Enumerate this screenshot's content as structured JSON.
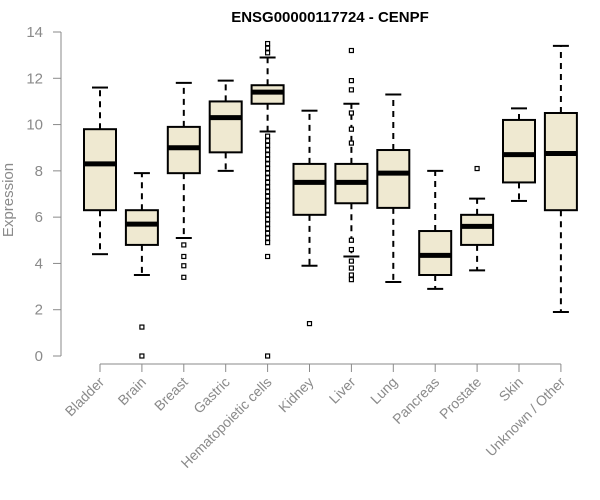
{
  "chart_data": {
    "type": "boxplot",
    "title": "ENSG00000117724 - CENPF",
    "xlabel": "",
    "ylabel": "Expression",
    "ylim": [
      0,
      14
    ],
    "yticks": [
      0,
      2,
      4,
      6,
      8,
      10,
      12,
      14
    ],
    "categories": [
      "Bladder",
      "Brain",
      "Breast",
      "Gastric",
      "Hematopoietic cells",
      "Kidney",
      "Liver",
      "Lung",
      "Pancreas",
      "Prostate",
      "Skin",
      "Unknown / Other"
    ],
    "boxes": [
      {
        "name": "Bladder",
        "whisker_low": 4.4,
        "q1": 6.3,
        "median": 8.3,
        "q3": 9.8,
        "whisker_high": 11.6,
        "outliers": []
      },
      {
        "name": "Brain",
        "whisker_low": 3.5,
        "q1": 4.8,
        "median": 5.7,
        "q3": 6.3,
        "whisker_high": 7.9,
        "outliers": [
          1.25,
          0.0
        ]
      },
      {
        "name": "Breast",
        "whisker_low": 5.1,
        "q1": 7.9,
        "median": 9.0,
        "q3": 9.9,
        "whisker_high": 11.8,
        "outliers": [
          4.8,
          4.3,
          3.9,
          3.4
        ]
      },
      {
        "name": "Gastric",
        "whisker_low": 8.0,
        "q1": 8.8,
        "median": 10.3,
        "q3": 11.0,
        "whisker_high": 11.9,
        "outliers": []
      },
      {
        "name": "Hematopoietic cells",
        "whisker_low": 9.7,
        "q1": 10.9,
        "median": 11.4,
        "q3": 11.7,
        "whisker_high": 12.9,
        "outliers": [
          13.5,
          13.3,
          13.1,
          9.5,
          9.3,
          9.1,
          8.9,
          8.7,
          8.5,
          8.3,
          8.1,
          7.9,
          7.7,
          7.5,
          7.3,
          7.1,
          6.9,
          6.7,
          6.5,
          6.3,
          6.1,
          5.9,
          5.7,
          5.5,
          5.3,
          5.1,
          4.9,
          4.3,
          0.0
        ]
      },
      {
        "name": "Kidney",
        "whisker_low": 3.9,
        "q1": 6.1,
        "median": 7.5,
        "q3": 8.3,
        "whisker_high": 10.6,
        "outliers": [
          1.4
        ]
      },
      {
        "name": "Liver",
        "whisker_low": 4.3,
        "q1": 6.6,
        "median": 7.5,
        "q3": 8.3,
        "whisker_high": 10.9,
        "outliers": [
          13.2,
          11.9,
          11.5,
          10.5,
          9.8,
          9.2,
          5.0,
          4.6,
          4.1,
          3.8,
          3.5,
          3.3
        ]
      },
      {
        "name": "Lung",
        "whisker_low": 3.2,
        "q1": 6.4,
        "median": 7.9,
        "q3": 8.9,
        "whisker_high": 11.3,
        "outliers": []
      },
      {
        "name": "Pancreas",
        "whisker_low": 2.9,
        "q1": 3.5,
        "median": 4.35,
        "q3": 5.4,
        "whisker_high": 8.0,
        "outliers": []
      },
      {
        "name": "Prostate",
        "whisker_low": 3.7,
        "q1": 4.8,
        "median": 5.6,
        "q3": 6.1,
        "whisker_high": 6.8,
        "outliers": [
          8.1
        ]
      },
      {
        "name": "Skin",
        "whisker_low": 6.7,
        "q1": 7.5,
        "median": 8.7,
        "q3": 10.2,
        "whisker_high": 10.7,
        "outliers": []
      },
      {
        "name": "Unknown / Other",
        "whisker_low": 1.9,
        "q1": 6.3,
        "median": 8.75,
        "q3": 10.5,
        "whisker_high": 13.4,
        "outliers": []
      }
    ],
    "colors": {
      "box_fill": "#efe9d1",
      "box_stroke": "#000000",
      "axis": "#8a8a8a"
    }
  }
}
